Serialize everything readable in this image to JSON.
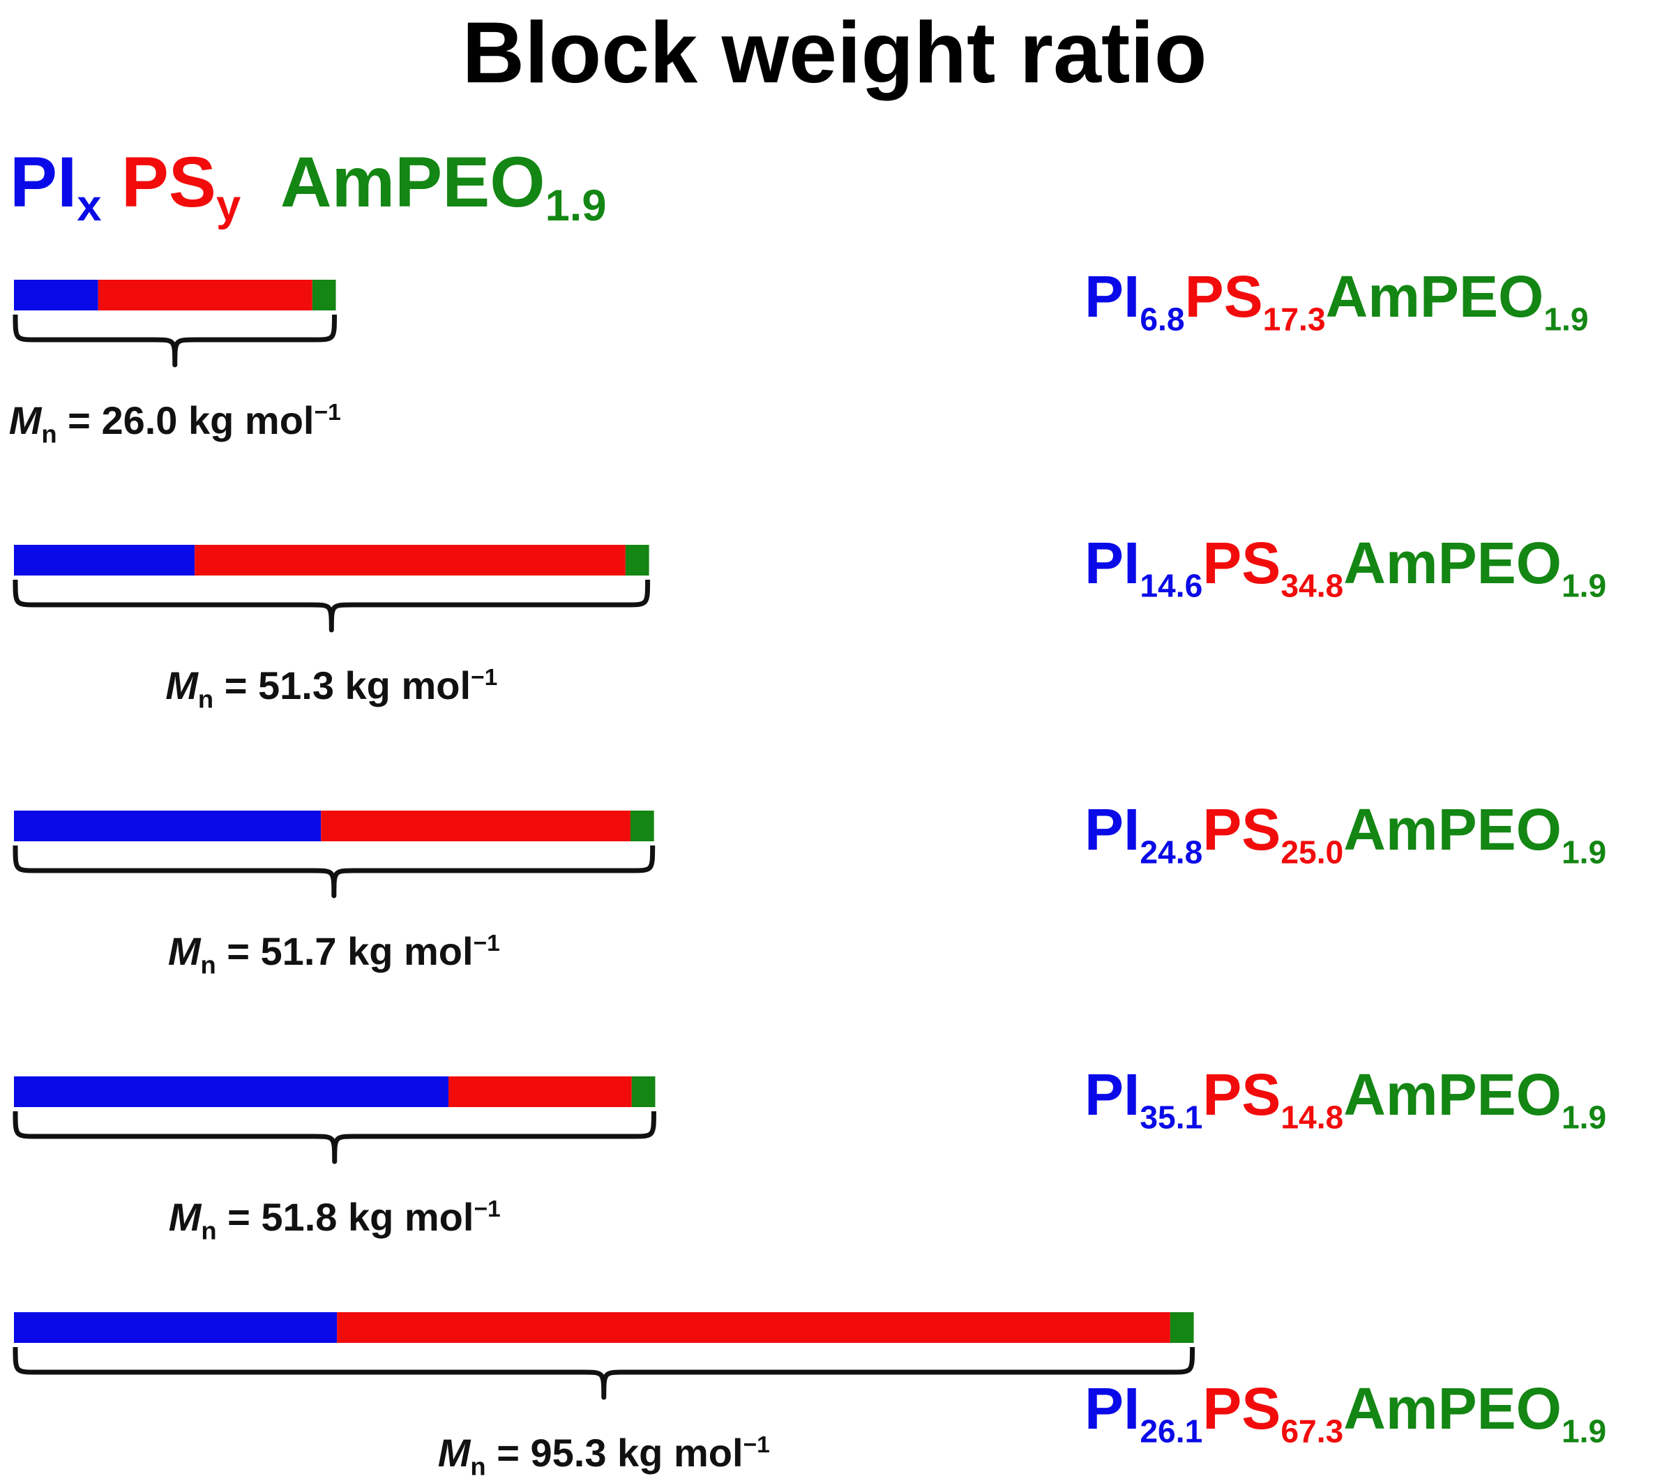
{
  "title": "Block weight ratio",
  "legend": {
    "pi": "PI",
    "pi_sub": "x",
    "ps": "PS",
    "ps_sub": "y",
    "peo": "AmPEO",
    "peo_sub": "1.9"
  },
  "colors": {
    "pi": "#0a0ae8",
    "ps": "#f20b0b",
    "peo": "#138613",
    "text": "#111111"
  },
  "copolymers": [
    {
      "pi_label": "PI",
      "pi_sub": "6.8",
      "ps_label": "PS",
      "ps_sub": "17.3",
      "peo_label": "AmPEO",
      "peo_sub": "1.9",
      "pi": 6.8,
      "ps": 17.3,
      "peo": 1.9,
      "mn_symbol": "M",
      "mn_sub": "n",
      "mn_text": " = 26.0 kg mol",
      "mn_sup": "−1"
    },
    {
      "pi_label": "PI",
      "pi_sub": "14.6",
      "ps_label": "PS",
      "ps_sub": "34.8",
      "peo_label": "AmPEO",
      "peo_sub": "1.9",
      "pi": 14.6,
      "ps": 34.8,
      "peo": 1.9,
      "mn_symbol": "M",
      "mn_sub": "n",
      "mn_text": " = 51.3 kg mol",
      "mn_sup": "−1"
    },
    {
      "pi_label": "PI",
      "pi_sub": "24.8",
      "ps_label": "PS",
      "ps_sub": "25.0",
      "peo_label": "AmPEO",
      "peo_sub": "1.9",
      "pi": 24.8,
      "ps": 25.0,
      "peo": 1.9,
      "mn_symbol": "M",
      "mn_sub": "n",
      "mn_text": " = 51.7 kg mol",
      "mn_sup": "−1"
    },
    {
      "pi_label": "PI",
      "pi_sub": "35.1",
      "ps_label": "PS",
      "ps_sub": "14.8",
      "peo_label": "AmPEO",
      "peo_sub": "1.9",
      "pi": 35.1,
      "ps": 14.8,
      "peo": 1.9,
      "mn_symbol": "M",
      "mn_sub": "n",
      "mn_text": " = 51.8 kg mol",
      "mn_sup": "−1"
    },
    {
      "pi_label": "PI",
      "pi_sub": "26.1",
      "ps_label": "PS",
      "ps_sub": "67.3",
      "peo_label": "AmPEO",
      "peo_sub": "1.9",
      "pi": 26.1,
      "ps": 67.3,
      "peo": 1.9,
      "mn_symbol": "M",
      "mn_sub": "n",
      "mn_text": " = 95.3 kg mol",
      "mn_sup": "−1"
    }
  ]
}
